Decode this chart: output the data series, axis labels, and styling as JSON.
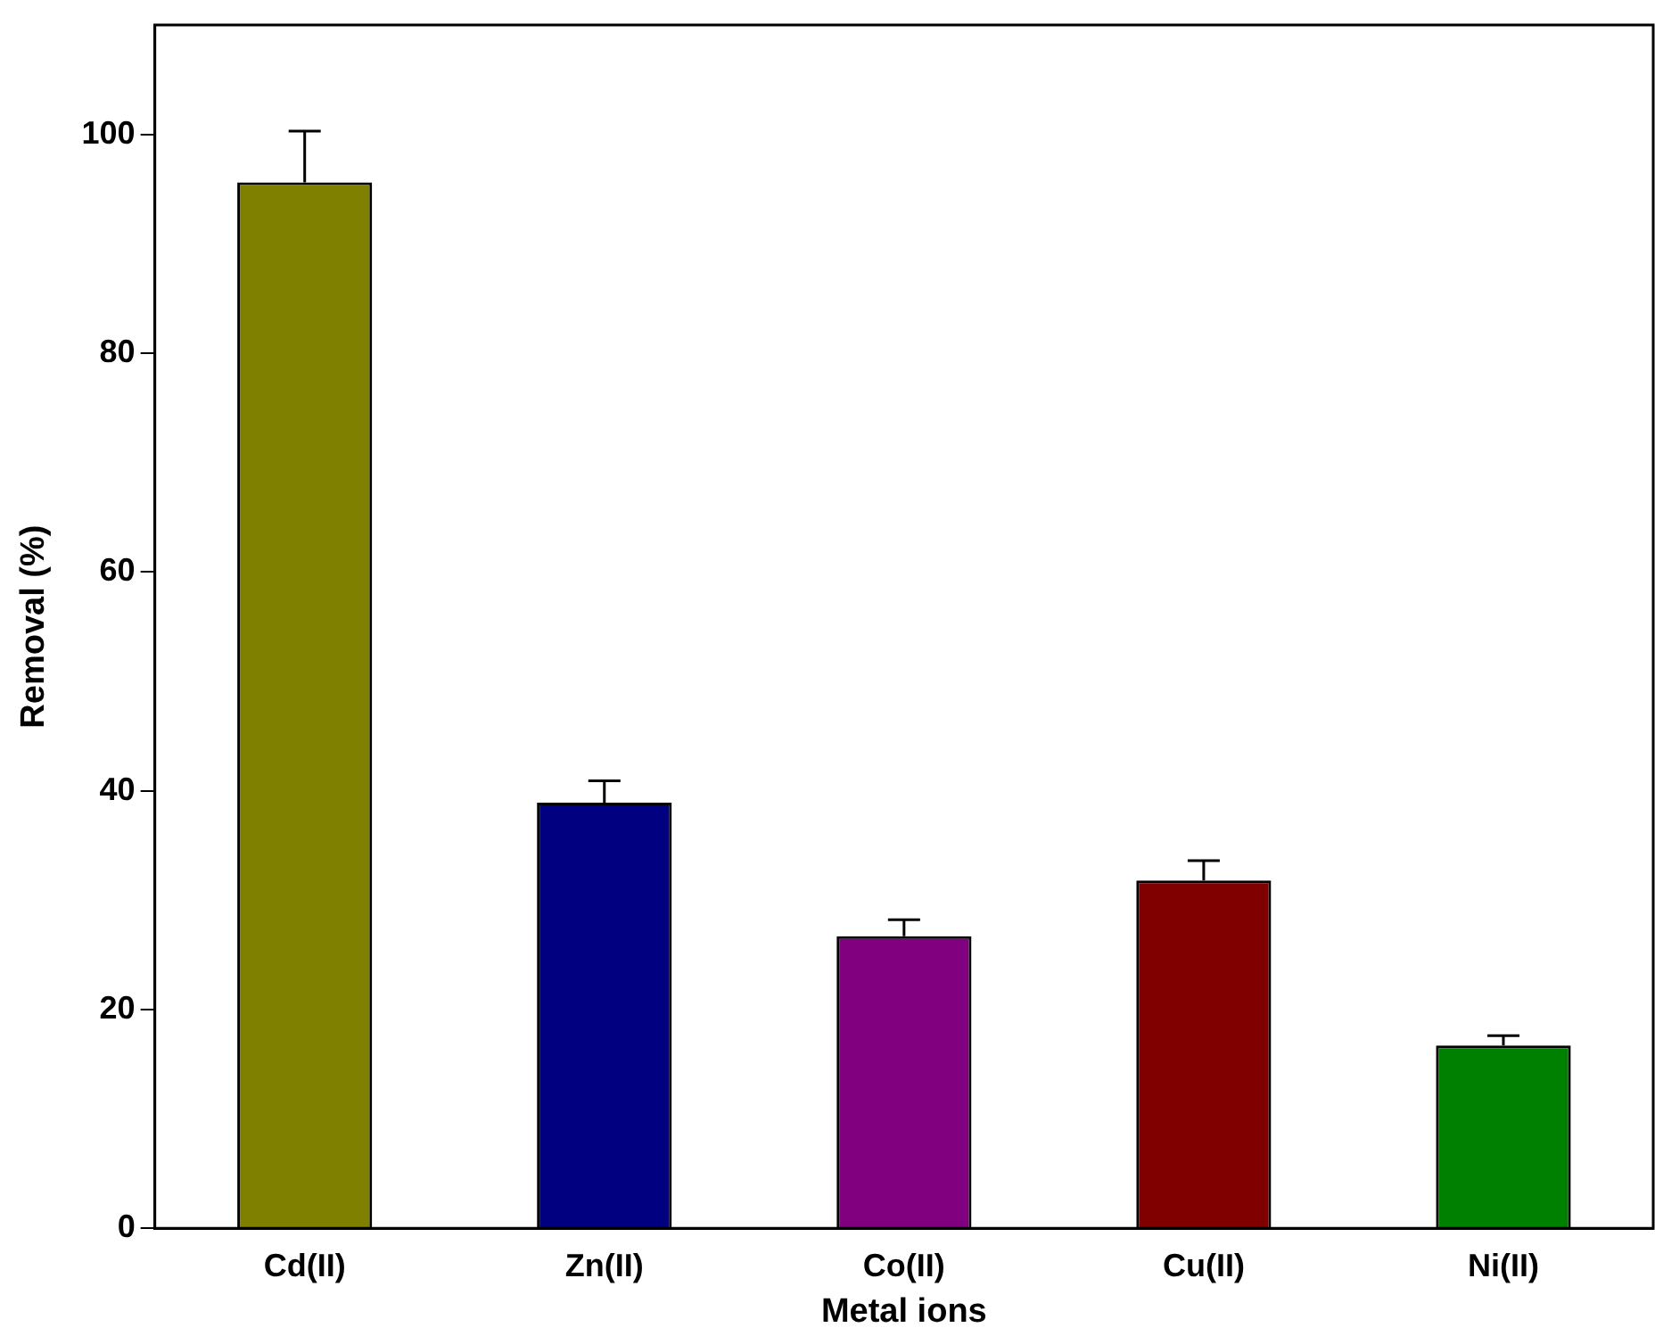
{
  "chart_data": {
    "type": "bar",
    "xlabel": "Metal ions",
    "ylabel": "Removal (%)",
    "categories": [
      "Cd(II)",
      "Zn(II)",
      "Co(II)",
      "Cu(II)",
      "Ni(II)"
    ],
    "values": [
      95.6,
      38.9,
      26.7,
      31.8,
      16.7
    ],
    "colors": [
      "#808000",
      "#000080",
      "#800080",
      "#800000",
      "#008000"
    ],
    "errors": [
      [
        95.6,
        100.3
      ],
      [
        38.9,
        40.9
      ],
      [
        26.7,
        28.2
      ],
      [
        31.8,
        33.6
      ],
      [
        16.7,
        17.6
      ]
    ],
    "ylim": [
      0,
      110
    ],
    "yticks": [
      0,
      20,
      40,
      60,
      80,
      100
    ],
    "grid": false,
    "legend": false
  }
}
